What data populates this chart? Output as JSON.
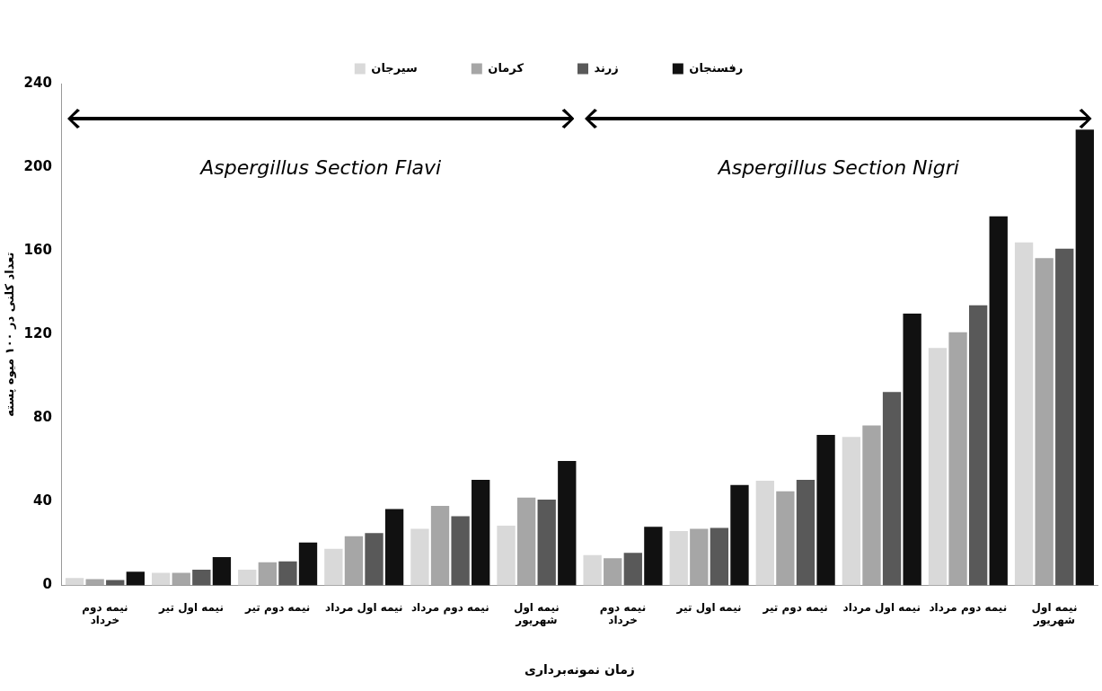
{
  "chart_data": {
    "type": "bar",
    "xlabel": "زمان نمونه‌برداری",
    "ylabel": "تعداد کلنی در ۱۰۰ میوه پسته",
    "categories": [
      "نیمه دوم خرداد",
      "نیمه اول تیر",
      "نیمه دوم تیر",
      "نیمه اول مرداد",
      "نیمه دوم مرداد",
      "نیمه اول شهریور",
      "نیمه دوم خرداد",
      "نیمه اول تیر",
      "نیمه دوم تیر",
      "نیمه اول مرداد",
      "نیمه دوم مرداد",
      "نیمه اول شهریور"
    ],
    "series": [
      {
        "name": "سیرجان",
        "color": "#d9d9d9",
        "values": [
          3.5,
          6,
          7.5,
          17.5,
          27,
          28.5,
          14.5,
          26,
          50,
          71,
          113.5,
          164
        ]
      },
      {
        "name": "کرمان",
        "color": "#a6a6a6",
        "values": [
          3,
          6,
          11,
          23.5,
          38,
          42,
          13,
          27,
          45,
          76.5,
          121,
          156.5
        ]
      },
      {
        "name": "زرند",
        "color": "#595959",
        "values": [
          2.5,
          7.5,
          11.5,
          25,
          33,
          41,
          15.5,
          27.5,
          50.5,
          92.5,
          134,
          161
        ]
      },
      {
        "name": "رفسنجان",
        "color": "#111111",
        "values": [
          6.5,
          13.5,
          20.5,
          36.5,
          50.5,
          59.5,
          28,
          48,
          72,
          130,
          176.5,
          218
        ]
      }
    ],
    "annotations": [
      "Aspergillus Section Flavi",
      "Aspergillus Section Nigri"
    ],
    "ylim": [
      0,
      240
    ],
    "yticks": [
      0,
      40,
      80,
      120,
      160,
      200,
      240
    ],
    "grid": false,
    "legend": "top"
  }
}
